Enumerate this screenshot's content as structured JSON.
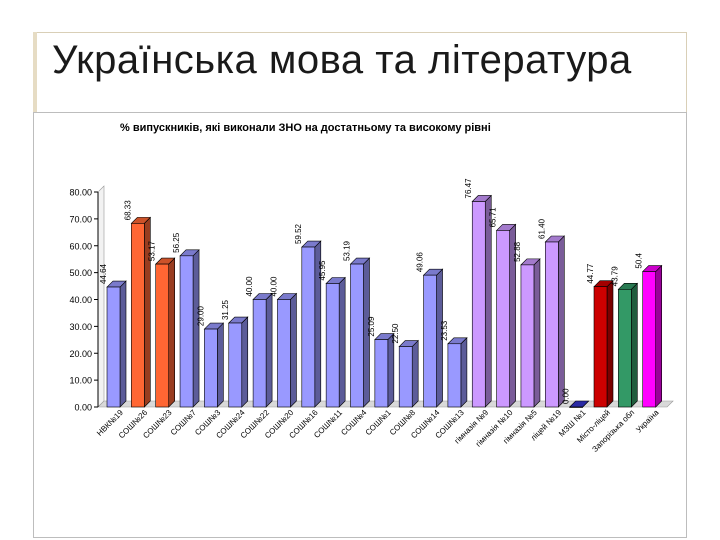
{
  "slide": {
    "title": "Українська мова та література"
  },
  "chart_data": {
    "type": "bar",
    "title": "% випускників, які виконали ЗНО на достатньому та високому рівні",
    "ylim": [
      0,
      80
    ],
    "yticks": [
      "0.00",
      "10.00",
      "20.00",
      "30.00",
      "40.00",
      "50.00",
      "60.00",
      "70.00",
      "80.00"
    ],
    "grid": false,
    "categories": [
      "НВК№19",
      "СОШ№26",
      "СОШ№23",
      "СОШ№7",
      "СОШ№3",
      "СОШ№24",
      "СОШ№22",
      "СОШ№20",
      "СОШ№16",
      "СОШ№11",
      "СОШ№4",
      "СОШ№1",
      "СОШ№8",
      "СОШ№14",
      "СОШ№13",
      "гімназія №9",
      "гімназія №10",
      "гімназія №5",
      "ліцей №19",
      "МЗШ №1",
      "Місто-ліцей",
      "Запорізька обл",
      "Україна"
    ],
    "values": [
      44.64,
      68.33,
      53.17,
      56.25,
      29.0,
      31.25,
      40.0,
      40.0,
      59.52,
      45.95,
      53.19,
      25.09,
      22.5,
      49.06,
      23.53,
      76.47,
      65.71,
      52.88,
      61.4,
      0.0,
      44.77,
      43.79,
      50.4
    ],
    "value_labels": [
      "44.64",
      "68.33",
      "53.17",
      "56.25",
      "29.00",
      "31.25",
      "40.00",
      "40.00",
      "59.52",
      "45.95",
      "53.19",
      "25.09",
      "22.50",
      "49.06",
      "23.53",
      "76.47",
      "65.71",
      "52.88",
      "61.40",
      "0.00",
      "44.77",
      "43.79",
      "50.4"
    ],
    "colors": [
      "#9999ff",
      "#ff6633",
      "#ff6633",
      "#9999ff",
      "#9999ff",
      "#9999ff",
      "#9999ff",
      "#9999ff",
      "#9999ff",
      "#9999ff",
      "#9999ff",
      "#9999ff",
      "#9999ff",
      "#9999ff",
      "#9999ff",
      "#cc99ff",
      "#cc99ff",
      "#cc99ff",
      "#cc99ff",
      "#3333cc",
      "#cc0000",
      "#339966",
      "#ff00ff"
    ]
  }
}
